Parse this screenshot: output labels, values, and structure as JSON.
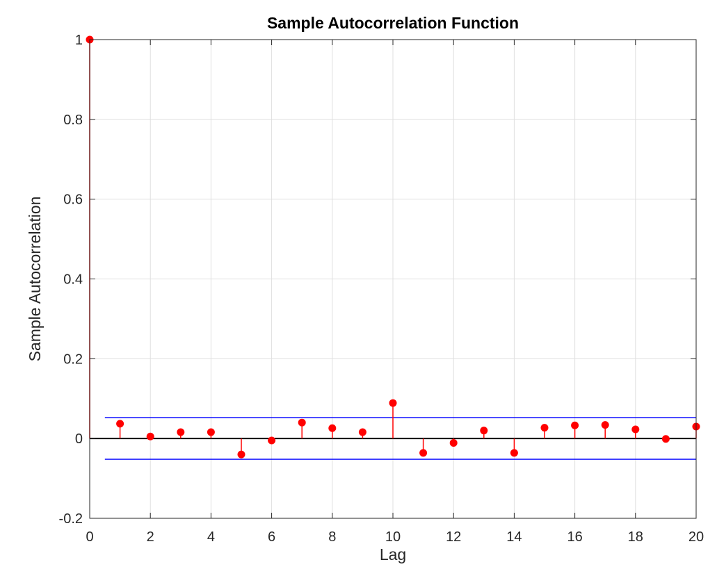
{
  "chart_data": {
    "type": "stem",
    "title": "Sample Autocorrelation Function",
    "xlabel": "Lag",
    "ylabel": "Sample Autocorrelation",
    "xlim": [
      0,
      20
    ],
    "ylim": [
      -0.2,
      1
    ],
    "xticks": [
      "0",
      "2",
      "4",
      "6",
      "8",
      "10",
      "12",
      "14",
      "16",
      "18",
      "20"
    ],
    "yticks": [
      "-0.2",
      "0",
      "0.2",
      "0.4",
      "0.6",
      "0.8",
      "1"
    ],
    "grid": true,
    "series": [
      {
        "x": [
          0,
          1,
          2,
          3,
          4,
          5,
          6,
          7,
          8,
          9,
          10,
          11,
          12,
          13,
          14,
          15,
          16,
          17,
          18,
          19,
          20
        ],
        "values": [
          1.0,
          0.037,
          0.005,
          0.016,
          0.016,
          -0.04,
          -0.005,
          0.04,
          0.026,
          0.016,
          0.089,
          -0.036,
          -0.011,
          0.02,
          -0.036,
          0.027,
          0.033,
          0.034,
          0.023,
          -0.001,
          0.03
        ],
        "color": "#ff0000"
      }
    ],
    "confidence_bounds": {
      "upper": 0.052,
      "lower": -0.052,
      "x_start": 0.5,
      "x_end": 20,
      "color": "#0000ff"
    },
    "zero_line_color": "#000000"
  }
}
